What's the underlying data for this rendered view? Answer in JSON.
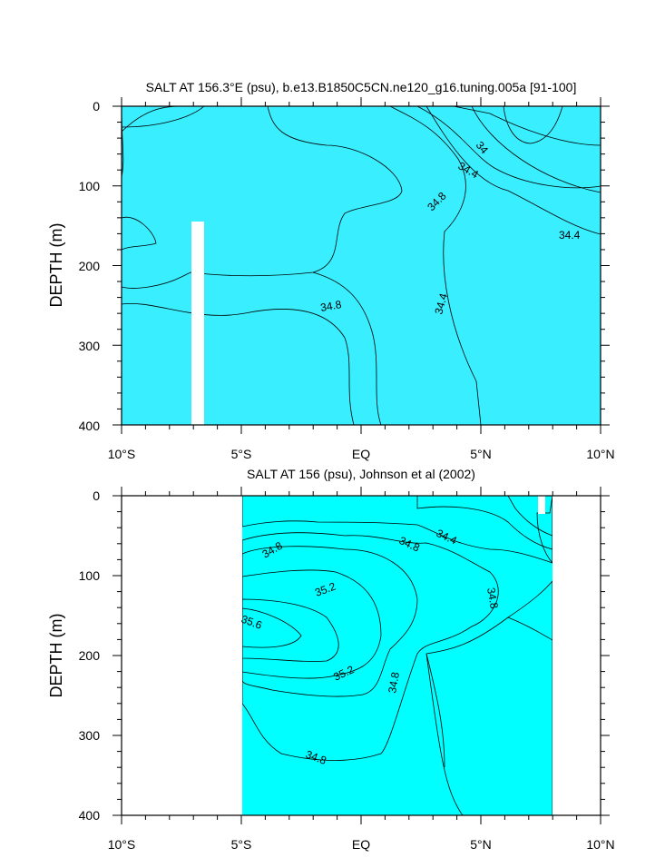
{
  "chart_data": [
    {
      "type": "contour",
      "title": "SALT AT 156.3°E (psu), b.e13.B1850C5CN.ne120_g16.tuning.005a [91-100]",
      "xlabel": "",
      "ylabel": "DEPTH (m)",
      "x_ticks": [
        "10°S",
        "5°S",
        "EQ",
        "5°N",
        "10°N"
      ],
      "y_ticks": [
        "0",
        "100",
        "200",
        "300",
        "400"
      ],
      "xlim": [
        -10,
        10
      ],
      "ylim": [
        400,
        0
      ],
      "contour_labels": [
        {
          "text": "34",
          "lat": 4.9,
          "depth": 40
        },
        {
          "text": "34.4",
          "lat": 4.5,
          "depth": 75
        },
        {
          "text": "34.8",
          "lat": 3.3,
          "depth": 120
        },
        {
          "text": "34.4",
          "lat": 8.7,
          "depth": 162
        },
        {
          "text": "34.8",
          "lat": -1.2,
          "depth": 252
        },
        {
          "text": "34.4",
          "lat": 3.4,
          "depth": 265
        }
      ],
      "fill_colors": {
        "fresh": "#1a9ef0",
        "low": "#00c8ff",
        "mid_low": "#38eeff",
        "mid": "#00ffcc",
        "high": "#19f06e",
        "max": "#00e000"
      }
    },
    {
      "type": "contour",
      "title": "SALT AT 156 (psu), Johnson et al (2002)",
      "xlabel": "",
      "ylabel": "DEPTH (m)",
      "x_ticks": [
        "10°S",
        "5°S",
        "EQ",
        "5°N",
        "10°N"
      ],
      "y_ticks": [
        "0",
        "100",
        "200",
        "300",
        "400"
      ],
      "xlim": [
        -10,
        10
      ],
      "ylim": [
        400,
        0
      ],
      "contour_labels": [
        {
          "text": "34.8",
          "lat": -3.7,
          "depth": 65
        },
        {
          "text": "34.8",
          "lat": 1.9,
          "depth": 60
        },
        {
          "text": "34.4",
          "lat": 3.6,
          "depth": 50
        },
        {
          "text": "35.2",
          "lat": -2.1,
          "depth": 120
        },
        {
          "text": "34.8",
          "lat": 5.4,
          "depth": 130
        },
        {
          "text": "35.6",
          "lat": -4.5,
          "depth": 158
        },
        {
          "text": "35.2",
          "lat": -0.7,
          "depth": 216
        },
        {
          "text": "34.8",
          "lat": 1.2,
          "depth": 230
        },
        {
          "text": "34.8",
          "lat": -2.0,
          "depth": 330
        }
      ],
      "fill_colors": {
        "fresh": "#0050e8",
        "low": "#00c8ff",
        "mid_low": "#38eeff",
        "mid": "#00ffcc",
        "high": "#19f06e",
        "max": "#00e000",
        "peak": "#a0f030",
        "peak2": "#ffff33"
      }
    }
  ]
}
